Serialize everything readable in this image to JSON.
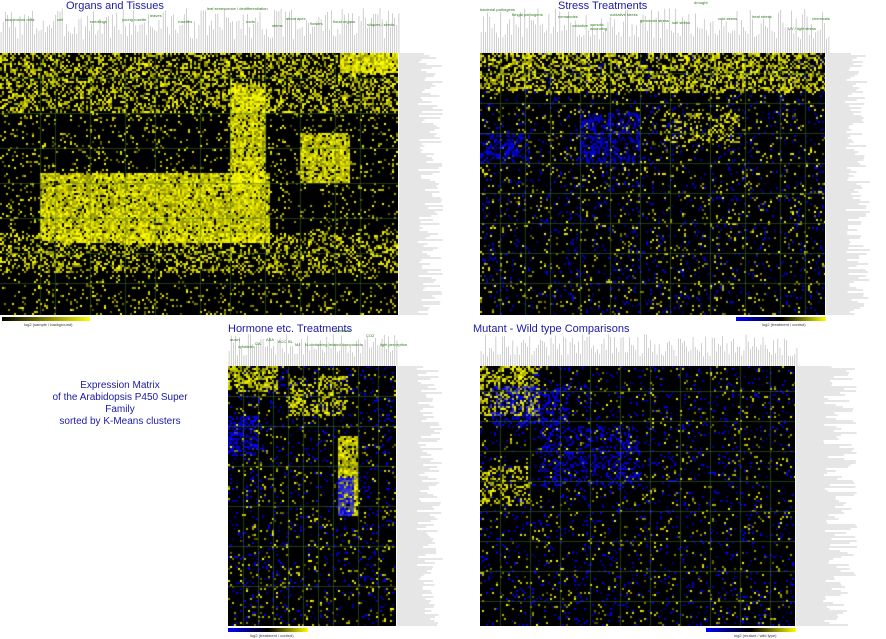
{
  "panels": {
    "organs": {
      "title": "Organs and Tissues",
      "groups": [
        "suspension cells",
        "cell",
        "seedlings",
        "young rosette",
        "leaves",
        "rosettes",
        "leaf senescence / dedifferentiation",
        "roots",
        "stems",
        "shoot apex",
        "flowers",
        "floral organs",
        "siliques / seeds"
      ],
      "scale_label": "log2 (sample / background)"
    },
    "stress": {
      "title": "Stress Treatments",
      "groups": [
        "bacterial pathogens",
        "fungal pathogens",
        "nematodes",
        "oxidative",
        "osmotic",
        "oxidative stress",
        "genotoxic stress",
        "wounding",
        "salt stress",
        "drought",
        "cold stress",
        "heat stress",
        "UV / light stress",
        "chemicals"
      ],
      "scale_label": "log2 (treatment / control)"
    },
    "hormone": {
      "title": "Hormone etc. Treatments",
      "groups": [
        "auxin",
        "cytokinin",
        "GA",
        "ABA",
        "ACC",
        "BL",
        "MJ",
        "N-containing related compounds",
        "nutrients",
        "CO2",
        "light perception"
      ],
      "scale_label": "log2 (treatment / control)"
    },
    "mutant": {
      "title": "Mutant - Wild type Comparisons",
      "groups": [],
      "scale_label": "log2 (mutant / wild type)"
    }
  },
  "caption": {
    "line1": "Expression Matrix",
    "line2": "of the Arabidopsis P450 Super Family",
    "line3": "sorted by K-Means clusters"
  },
  "colors": {
    "high": "#ffff00",
    "low": "#0000ff",
    "zero": "#000000",
    "grid": "#4a7a2a",
    "title": "#1a1aa6"
  }
}
